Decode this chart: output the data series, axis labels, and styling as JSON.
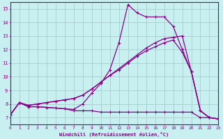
{
  "xlabel": "Windchill (Refroidissement éolien,°C)",
  "bg_color": "#c8f0f0",
  "line_color": "#880088",
  "grid_color": "#aacccc",
  "xlim": [
    0,
    23
  ],
  "ylim": [
    6.5,
    15.5
  ],
  "xticks": [
    0,
    1,
    2,
    3,
    4,
    5,
    6,
    7,
    8,
    9,
    10,
    11,
    12,
    13,
    14,
    15,
    16,
    17,
    18,
    19,
    20,
    21,
    22,
    23
  ],
  "yticks": [
    7,
    8,
    9,
    10,
    11,
    12,
    13,
    14,
    15
  ],
  "line1_x": [
    0,
    1,
    2,
    3,
    4,
    5,
    6,
    7,
    8,
    9,
    10,
    11,
    12,
    13,
    14,
    15,
    16,
    17,
    18,
    19,
    20,
    21,
    22,
    23
  ],
  "line1_y": [
    7.2,
    8.1,
    7.8,
    7.8,
    7.75,
    7.7,
    7.65,
    7.6,
    8.0,
    8.8,
    9.5,
    10.5,
    12.5,
    15.3,
    14.7,
    14.4,
    14.4,
    14.4,
    13.7,
    12.0,
    10.4,
    7.5,
    7.0,
    6.9
  ],
  "line2_x": [
    0,
    1,
    2,
    3,
    4,
    5,
    6,
    7,
    8,
    9,
    10,
    11,
    12,
    13,
    14,
    15,
    16,
    17,
    18,
    19,
    20,
    21,
    22,
    23
  ],
  "line2_y": [
    7.2,
    8.1,
    7.8,
    7.8,
    7.75,
    7.7,
    7.65,
    7.5,
    7.5,
    7.5,
    7.4,
    7.4,
    7.4,
    7.4,
    7.4,
    7.4,
    7.4,
    7.4,
    7.4,
    7.4,
    7.4,
    7.0,
    7.0,
    6.9
  ],
  "line3_x": [
    0,
    1,
    2,
    3,
    4,
    5,
    6,
    7,
    8,
    9,
    10,
    11,
    12,
    13,
    14,
    15,
    16,
    17,
    18,
    19,
    20,
    21,
    22,
    23
  ],
  "line3_y": [
    7.2,
    8.1,
    7.9,
    8.0,
    8.1,
    8.2,
    8.3,
    8.4,
    8.65,
    9.1,
    9.6,
    10.1,
    10.6,
    11.1,
    11.6,
    12.1,
    12.5,
    12.8,
    12.9,
    13.0,
    10.4,
    7.5,
    7.0,
    6.9
  ],
  "line4_x": [
    0,
    1,
    2,
    3,
    4,
    5,
    6,
    7,
    8,
    9,
    10,
    11,
    12,
    13,
    14,
    15,
    16,
    17,
    18,
    19,
    20,
    21,
    22,
    23
  ],
  "line4_y": [
    7.2,
    8.1,
    7.9,
    8.0,
    8.1,
    8.2,
    8.3,
    8.4,
    8.65,
    9.1,
    9.6,
    10.1,
    10.5,
    11.0,
    11.5,
    11.9,
    12.2,
    12.5,
    12.7,
    11.8,
    10.4,
    7.5,
    7.0,
    6.9
  ]
}
